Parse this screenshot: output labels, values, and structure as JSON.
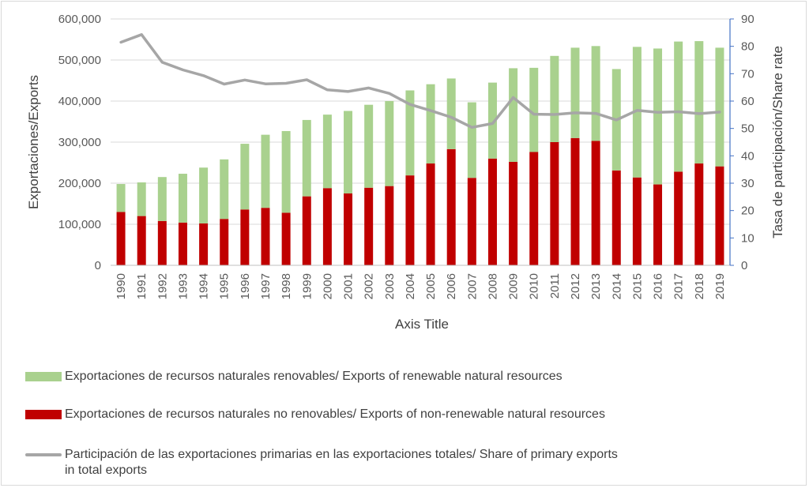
{
  "chart_data": {
    "type": "bar",
    "stacked": true,
    "title": "",
    "xlabel": "Axis Title",
    "ylabel": "Exportaciones/Exports",
    "y2label": "Tasa de participación/Share rate",
    "ylim": [
      0,
      600000
    ],
    "y2lim": [
      0,
      90
    ],
    "yticks": [
      "0",
      "100,000",
      "200,000",
      "300,000",
      "400,000",
      "500,000",
      "600,000"
    ],
    "y2ticks": [
      "0",
      "10",
      "20",
      "30",
      "40",
      "50",
      "60",
      "70",
      "80",
      "90"
    ],
    "grid": "horizontal",
    "legend_position": "bottom",
    "categories": [
      "1990",
      "1991",
      "1992",
      "1993",
      "1994",
      "1995",
      "1996",
      "1997",
      "1998",
      "1999",
      "2000",
      "2001",
      "2002",
      "2003",
      "2004",
      "2005",
      "2006",
      "2007",
      "2008",
      "2009",
      "2010",
      "2011",
      "2012",
      "2013",
      "2014",
      "2015",
      "2016",
      "2017",
      "2018",
      "2019"
    ],
    "series": [
      {
        "name": "Exportaciones de recursos naturales no renovables/ Exports of non-renewable natural resources",
        "kind": "bar",
        "color": "#c00000",
        "values": [
          130000,
          120000,
          108000,
          104000,
          102000,
          113000,
          136000,
          140000,
          128000,
          168000,
          188000,
          175000,
          189000,
          193000,
          219000,
          248000,
          283000,
          213000,
          260000,
          252000,
          276000,
          300000,
          310000,
          303000,
          231000,
          214000,
          197000,
          228000,
          248000,
          241000
        ]
      },
      {
        "name": "Exportaciones de recursos naturales renovables/ Exports of renewable natural resources",
        "kind": "bar",
        "color": "#a9d18e",
        "values": [
          68000,
          82000,
          107000,
          119000,
          136000,
          145000,
          160000,
          178000,
          199000,
          186000,
          179000,
          201000,
          202000,
          207000,
          207000,
          193000,
          172000,
          184000,
          185000,
          228000,
          205000,
          210000,
          220000,
          231000,
          247000,
          318000,
          331000,
          317000,
          298000,
          289000
        ]
      },
      {
        "name": "Participación de las exportaciones primarias en las exportaciones totales/ Share of primary exports in total exports",
        "kind": "line",
        "axis": "right",
        "color": "#a6a6a6",
        "values": [
          81.5,
          84.3,
          74.2,
          71.4,
          69.3,
          66.2,
          67.7,
          66.3,
          66.5,
          67.8,
          64.1,
          63.5,
          64.8,
          62.8,
          58.8,
          56.5,
          54.1,
          50.4,
          51.8,
          61.3,
          55.2,
          55.1,
          55.7,
          55.5,
          53.1,
          56.6,
          55.9,
          56.1,
          55.4,
          56.0
        ]
      }
    ]
  },
  "legend": {
    "renewable": "Exportaciones de recursos naturales renovables/ Exports of renewable natural resources",
    "nonrenewable": "Exportaciones de recursos naturales no renovables/ Exports of non-renewable natural resources",
    "share_line1": "Participación de las exportaciones primarias en las exportaciones totales/ Share of primary exports",
    "share_line2": "in total exports"
  },
  "colors": {
    "nonrenewable": "#c00000",
    "renewable": "#a9d18e",
    "share": "#a6a6a6",
    "gridline": "#d9d9d9",
    "right_axis": "#4472c4"
  }
}
